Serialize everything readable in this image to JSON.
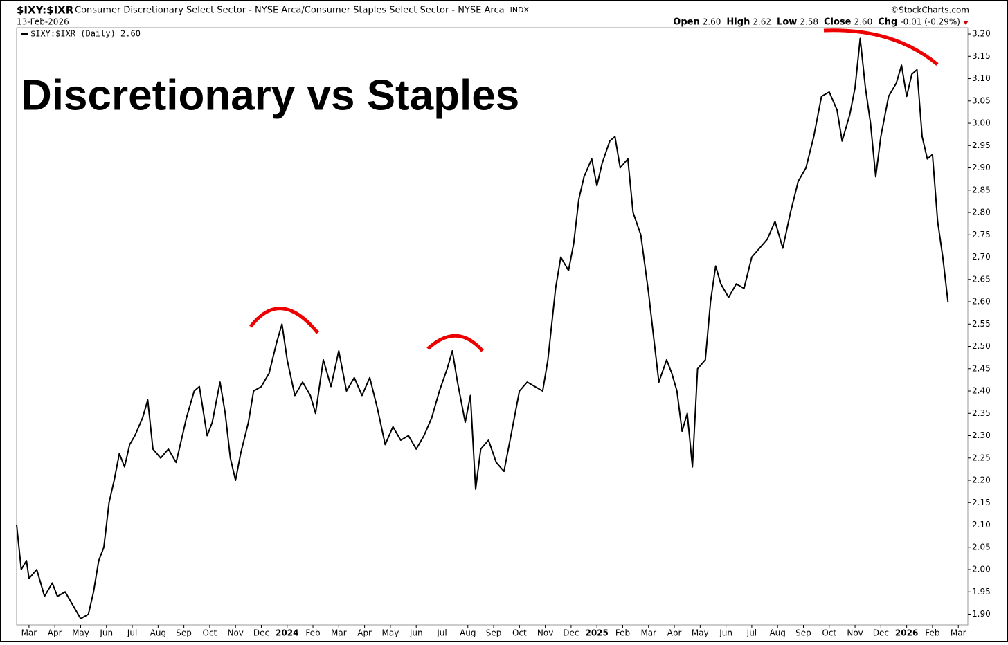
{
  "chart_data": {
    "type": "line",
    "symbol": "$IXY:$IXR",
    "subtitle": "Consumer Discretionary Select Sector - NYSE Arca/Consumer Staples Select Sector - NYSE Arca",
    "exchange": "INDX",
    "date": "13-Feb-2026",
    "watermark": "©StockCharts.com",
    "quote": [
      {
        "label": "Open",
        "value": "2.60"
      },
      {
        "label": "High",
        "value": "2.62"
      },
      {
        "label": "Low",
        "value": "2.58"
      },
      {
        "label": "Close",
        "value": "2.60"
      },
      {
        "label": "Chg",
        "value": "-0.01 (-0.29%)"
      }
    ],
    "title": "Discretionary vs Staples",
    "series": [
      {
        "name": "$IXY:$IXR (Daily) 2.60",
        "color": "#000000",
        "x": [
          -0.48,
          -0.3,
          -0.1,
          0,
          0.3,
          0.6,
          0.9,
          1.1,
          1.4,
          1.7,
          2.0,
          2.3,
          2.5,
          2.7,
          2.9,
          3.1,
          3.3,
          3.5,
          3.7,
          3.9,
          4.1,
          4.4,
          4.6,
          4.8,
          5.1,
          5.4,
          5.7,
          5.9,
          6.1,
          6.4,
          6.6,
          6.9,
          7.1,
          7.4,
          7.6,
          7.8,
          8.0,
          8.2,
          8.5,
          8.7,
          9.0,
          9.3,
          9.6,
          9.8,
          10.0,
          10.3,
          10.6,
          10.9,
          11.1,
          11.4,
          11.7,
          12.0,
          12.3,
          12.6,
          12.9,
          13.2,
          13.5,
          13.8,
          14.1,
          14.4,
          14.7,
          15.0,
          15.3,
          15.6,
          15.9,
          16.2,
          16.4,
          16.6,
          16.9,
          17.1,
          17.3,
          17.5,
          17.8,
          18.1,
          18.4,
          18.7,
          19.0,
          19.3,
          19.6,
          19.9,
          20.1,
          20.4,
          20.6,
          20.9,
          21.1,
          21.3,
          21.5,
          21.8,
          22.0,
          22.2,
          22.5,
          22.7,
          22.9,
          23.2,
          23.4,
          23.7,
          24.0,
          24.2,
          24.4,
          24.7,
          24.9,
          25.1,
          25.3,
          25.5,
          25.7,
          25.9,
          26.2,
          26.4,
          26.6,
          26.8,
          27.1,
          27.4,
          27.7,
          28.0,
          28.3,
          28.6,
          28.9,
          29.2,
          29.5,
          29.8,
          30.1,
          30.4,
          30.7,
          31.0,
          31.3,
          31.5,
          31.8,
          32.0,
          32.2,
          32.4,
          32.6,
          32.8,
          33.0,
          33.3,
          33.6,
          33.8,
          34.0,
          34.2,
          34.4,
          34.6,
          34.8,
          35.0,
          35.2,
          35.4,
          35.6
        ],
        "values": [
          2.1,
          2.0,
          2.02,
          1.98,
          2.0,
          1.94,
          1.97,
          1.94,
          1.95,
          1.92,
          1.89,
          1.9,
          1.95,
          2.02,
          2.05,
          2.15,
          2.2,
          2.26,
          2.23,
          2.28,
          2.3,
          2.34,
          2.38,
          2.27,
          2.25,
          2.27,
          2.24,
          2.29,
          2.34,
          2.4,
          2.41,
          2.3,
          2.33,
          2.42,
          2.35,
          2.25,
          2.2,
          2.26,
          2.33,
          2.4,
          2.41,
          2.44,
          2.51,
          2.55,
          2.47,
          2.39,
          2.42,
          2.39,
          2.35,
          2.47,
          2.41,
          2.49,
          2.4,
          2.43,
          2.39,
          2.43,
          2.36,
          2.28,
          2.32,
          2.29,
          2.3,
          2.27,
          2.3,
          2.34,
          2.4,
          2.45,
          2.49,
          2.42,
          2.33,
          2.39,
          2.18,
          2.27,
          2.29,
          2.24,
          2.22,
          2.31,
          2.4,
          2.42,
          2.41,
          2.4,
          2.47,
          2.63,
          2.7,
          2.67,
          2.73,
          2.83,
          2.88,
          2.92,
          2.86,
          2.91,
          2.96,
          2.97,
          2.9,
          2.92,
          2.8,
          2.75,
          2.62,
          2.52,
          2.42,
          2.47,
          2.44,
          2.4,
          2.31,
          2.35,
          2.23,
          2.45,
          2.47,
          2.6,
          2.68,
          2.64,
          2.61,
          2.64,
          2.63,
          2.7,
          2.72,
          2.74,
          2.78,
          2.72,
          2.8,
          2.87,
          2.9,
          2.97,
          3.06,
          3.07,
          3.03,
          2.96,
          3.02,
          3.08,
          3.19,
          3.08,
          3.0,
          2.88,
          2.97,
          3.06,
          3.09,
          3.13,
          3.06,
          3.11,
          3.12,
          2.97,
          2.92,
          2.93,
          2.78,
          2.7,
          2.6
        ]
      }
    ],
    "xlim": [
      -0.48,
      36.37
    ],
    "xticks": [
      {
        "value": 0,
        "label": "Mar"
      },
      {
        "value": 1,
        "label": "Apr"
      },
      {
        "value": 2,
        "label": "May"
      },
      {
        "value": 3,
        "label": "Jun"
      },
      {
        "value": 4,
        "label": "Jul"
      },
      {
        "value": 5,
        "label": "Aug"
      },
      {
        "value": 6,
        "label": "Sep"
      },
      {
        "value": 7,
        "label": "Oct"
      },
      {
        "value": 8,
        "label": "Nov"
      },
      {
        "value": 9,
        "label": "Dec"
      },
      {
        "value": 10,
        "label": "2024"
      },
      {
        "value": 11,
        "label": "Feb"
      },
      {
        "value": 12,
        "label": "Mar"
      },
      {
        "value": 13,
        "label": "Apr"
      },
      {
        "value": 14,
        "label": "May"
      },
      {
        "value": 15,
        "label": "Jun"
      },
      {
        "value": 16,
        "label": "Jul"
      },
      {
        "value": 17,
        "label": "Aug"
      },
      {
        "value": 18,
        "label": "Sep"
      },
      {
        "value": 19,
        "label": "Oct"
      },
      {
        "value": 20,
        "label": "Nov"
      },
      {
        "value": 21,
        "label": "Dec"
      },
      {
        "value": 22,
        "label": "2025"
      },
      {
        "value": 23,
        "label": "Feb"
      },
      {
        "value": 24,
        "label": "Mar"
      },
      {
        "value": 25,
        "label": "Apr"
      },
      {
        "value": 26,
        "label": "May"
      },
      {
        "value": 27,
        "label": "Jun"
      },
      {
        "value": 28,
        "label": "Jul"
      },
      {
        "value": 29,
        "label": "Aug"
      },
      {
        "value": 30,
        "label": "Sep"
      },
      {
        "value": 31,
        "label": "Oct"
      },
      {
        "value": 32,
        "label": "Nov"
      },
      {
        "value": 33,
        "label": "Dec"
      },
      {
        "value": 34,
        "label": "2026"
      },
      {
        "value": 35,
        "label": "Feb"
      },
      {
        "value": 36,
        "label": "Mar"
      }
    ],
    "ylim": [
      1.876,
      3.214
    ],
    "yticks": [
      {
        "value": 1.9,
        "label": "1.90"
      },
      1.95,
      {
        "value": 2.0,
        "label": "2.00"
      },
      2.05,
      {
        "value": 2.1,
        "label": "2.10"
      },
      2.15,
      {
        "value": 2.2,
        "label": "2.20"
      },
      2.25,
      {
        "value": 2.3,
        "label": "2.30"
      },
      2.35,
      {
        "value": 2.4,
        "label": "2.40"
      },
      2.45,
      {
        "value": 2.5,
        "label": "2.50"
      },
      2.55,
      {
        "value": 2.6,
        "label": "2.60"
      },
      2.65,
      {
        "value": 2.7,
        "label": "2.70"
      },
      2.75,
      {
        "value": 2.8,
        "label": "2.80"
      },
      2.85,
      {
        "value": 2.9,
        "label": "2.90"
      },
      2.95,
      {
        "value": 3.0,
        "label": "3.00"
      },
      3.05,
      {
        "value": 3.1,
        "label": "3.10"
      },
      3.15,
      {
        "value": 3.2,
        "label": "3.20"
      }
    ],
    "grid": false
  }
}
